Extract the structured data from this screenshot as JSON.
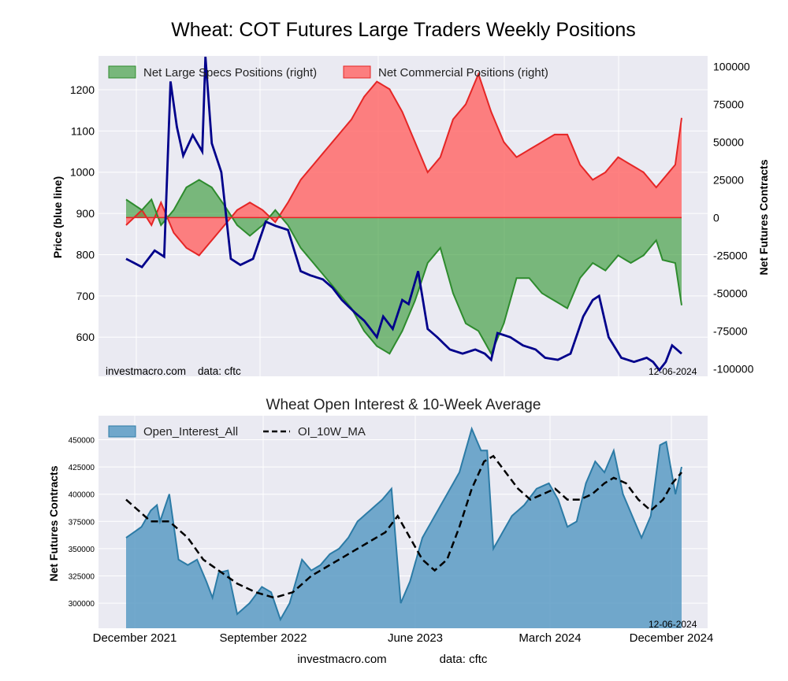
{
  "colors": {
    "panel_bg": "#eaeaf2",
    "grid": "#ffffff",
    "specs_fill": "#3b9b3b",
    "specs_line": "#2e8b2e",
    "comm_fill": "#ff6b6b",
    "comm_line": "#e52626",
    "price": "#00008b",
    "oi_fill": "#5b9bc4",
    "oi_line": "#2c7ba6",
    "ma": "#000000"
  },
  "chart_data": [
    {
      "type": "area",
      "title": "Wheat: COT Futures Large Traders Weekly Positions",
      "ylabel_left": "Price (blue line)",
      "ylabel_right": "Net Futures Contracts",
      "ylim_left": [
        505,
        1282
      ],
      "ylim_right": [
        -105000,
        107000
      ],
      "yticks_left": [
        "600",
        "700",
        "800",
        "900",
        "1000",
        "1100",
        "1200"
      ],
      "yticks_right": [
        "100000",
        "75000",
        "50000",
        "25000",
        "0",
        "-25000",
        "-50000",
        "-75000",
        "-100000"
      ],
      "legend_position": "top-left",
      "footer_left": "investmacro.com    data: cftc",
      "footer_right": "12-06-2024",
      "series": [
        {
          "name": "Net Large Specs Positions (right)",
          "anchors": [
            [
              0,
              12000
            ],
            [
              5,
              5000
            ],
            [
              8,
              12000
            ],
            [
              11,
              -5000
            ],
            [
              15,
              5000
            ],
            [
              19,
              20000
            ],
            [
              23,
              25000
            ],
            [
              27,
              20000
            ],
            [
              31,
              8000
            ],
            [
              35,
              -5000
            ],
            [
              39,
              -12000
            ],
            [
              43,
              -5000
            ],
            [
              47,
              5000
            ],
            [
              51,
              -5000
            ],
            [
              55,
              -20000
            ],
            [
              59,
              -30000
            ],
            [
              63,
              -40000
            ],
            [
              67,
              -50000
            ],
            [
              71,
              -60000
            ],
            [
              75,
              -75000
            ],
            [
              79,
              -85000
            ],
            [
              83,
              -90000
            ],
            [
              87,
              -75000
            ],
            [
              91,
              -55000
            ],
            [
              95,
              -30000
            ],
            [
              99,
              -20000
            ],
            [
              103,
              -50000
            ],
            [
              107,
              -70000
            ],
            [
              111,
              -75000
            ],
            [
              115,
              -90000
            ],
            [
              119,
              -70000
            ],
            [
              123,
              -40000
            ],
            [
              127,
              -40000
            ],
            [
              131,
              -50000
            ],
            [
              135,
              -55000
            ],
            [
              139,
              -60000
            ],
            [
              143,
              -40000
            ],
            [
              147,
              -30000
            ],
            [
              151,
              -35000
            ],
            [
              155,
              -25000
            ],
            [
              159,
              -30000
            ],
            [
              163,
              -25000
            ],
            [
              167,
              -15000
            ],
            [
              169,
              -28000
            ],
            [
              173,
              -30000
            ],
            [
              175,
              -58000
            ]
          ]
        },
        {
          "name": "Net Commercial Positions (right)",
          "anchors": [
            [
              0,
              -5000
            ],
            [
              5,
              5000
            ],
            [
              8,
              -5000
            ],
            [
              11,
              10000
            ],
            [
              15,
              -10000
            ],
            [
              19,
              -20000
            ],
            [
              23,
              -25000
            ],
            [
              27,
              -15000
            ],
            [
              31,
              -5000
            ],
            [
              35,
              5000
            ],
            [
              39,
              10000
            ],
            [
              43,
              5000
            ],
            [
              47,
              -3000
            ],
            [
              51,
              10000
            ],
            [
              55,
              25000
            ],
            [
              59,
              35000
            ],
            [
              63,
              45000
            ],
            [
              67,
              55000
            ],
            [
              71,
              65000
            ],
            [
              75,
              80000
            ],
            [
              79,
              90000
            ],
            [
              83,
              85000
            ],
            [
              87,
              70000
            ],
            [
              91,
              50000
            ],
            [
              95,
              30000
            ],
            [
              99,
              40000
            ],
            [
              103,
              65000
            ],
            [
              107,
              75000
            ],
            [
              111,
              95000
            ],
            [
              115,
              70000
            ],
            [
              119,
              50000
            ],
            [
              123,
              40000
            ],
            [
              127,
              45000
            ],
            [
              131,
              50000
            ],
            [
              135,
              55000
            ],
            [
              139,
              55000
            ],
            [
              143,
              35000
            ],
            [
              147,
              25000
            ],
            [
              151,
              30000
            ],
            [
              155,
              40000
            ],
            [
              159,
              35000
            ],
            [
              163,
              30000
            ],
            [
              167,
              20000
            ],
            [
              169,
              25000
            ],
            [
              173,
              35000
            ],
            [
              175,
              66000
            ]
          ]
        },
        {
          "name": "Price",
          "anchors": [
            [
              0,
              790
            ],
            [
              5,
              770
            ],
            [
              9,
              810
            ],
            [
              12,
              795
            ],
            [
              14,
              1220
            ],
            [
              16,
              1110
            ],
            [
              18,
              1040
            ],
            [
              21,
              1090
            ],
            [
              24,
              1050
            ],
            [
              25,
              1280
            ],
            [
              27,
              1070
            ],
            [
              30,
              1000
            ],
            [
              33,
              790
            ],
            [
              36,
              775
            ],
            [
              40,
              790
            ],
            [
              44,
              880
            ],
            [
              47,
              870
            ],
            [
              51,
              860
            ],
            [
              55,
              760
            ],
            [
              58,
              750
            ],
            [
              62,
              740
            ],
            [
              65,
              720
            ],
            [
              68,
              690
            ],
            [
              72,
              660
            ],
            [
              75,
              640
            ],
            [
              79,
              600
            ],
            [
              81,
              650
            ],
            [
              84,
              620
            ],
            [
              87,
              690
            ],
            [
              89,
              680
            ],
            [
              92,
              760
            ],
            [
              95,
              620
            ],
            [
              98,
              600
            ],
            [
              102,
              570
            ],
            [
              106,
              560
            ],
            [
              110,
              570
            ],
            [
              113,
              560
            ],
            [
              115,
              545
            ],
            [
              117,
              610
            ],
            [
              121,
              600
            ],
            [
              125,
              580
            ],
            [
              129,
              570
            ],
            [
              132,
              550
            ],
            [
              136,
              545
            ],
            [
              140,
              560
            ],
            [
              144,
              650
            ],
            [
              147,
              690
            ],
            [
              149,
              700
            ],
            [
              152,
              600
            ],
            [
              156,
              550
            ],
            [
              160,
              540
            ],
            [
              164,
              550
            ],
            [
              166,
              540
            ],
            [
              168,
              520
            ],
            [
              170,
              540
            ],
            [
              172,
              580
            ],
            [
              175,
              560
            ]
          ]
        }
      ]
    },
    {
      "type": "area",
      "title": "Wheat Open Interest & 10-Week Average",
      "ylabel": "Net Futures Contracts",
      "ylim": [
        277000,
        472000
      ],
      "yticks": [
        "300000",
        "325000",
        "350000",
        "375000",
        "400000",
        "425000",
        "450000"
      ],
      "xticks": [
        "December 2021",
        "September 2022",
        "June 2023",
        "March 2024",
        "December 2024"
      ],
      "legend_position": "top-left",
      "date_label": "12-06-2024",
      "series": [
        {
          "name": "Open_Interest_All",
          "anchors": [
            [
              0,
              360000
            ],
            [
              5,
              370000
            ],
            [
              8,
              385000
            ],
            [
              10,
              390000
            ],
            [
              11,
              375000
            ],
            [
              14,
              400000
            ],
            [
              17,
              340000
            ],
            [
              20,
              335000
            ],
            [
              23,
              340000
            ],
            [
              26,
              320000
            ],
            [
              28,
              305000
            ],
            [
              30,
              328000
            ],
            [
              33,
              330000
            ],
            [
              36,
              290000
            ],
            [
              40,
              300000
            ],
            [
              44,
              315000
            ],
            [
              47,
              310000
            ],
            [
              50,
              285000
            ],
            [
              53,
              300000
            ],
            [
              57,
              340000
            ],
            [
              60,
              330000
            ],
            [
              63,
              335000
            ],
            [
              66,
              345000
            ],
            [
              69,
              350000
            ],
            [
              72,
              360000
            ],
            [
              75,
              375000
            ],
            [
              79,
              385000
            ],
            [
              83,
              395000
            ],
            [
              86,
              405000
            ],
            [
              89,
              300000
            ],
            [
              92,
              320000
            ],
            [
              96,
              360000
            ],
            [
              100,
              380000
            ],
            [
              104,
              400000
            ],
            [
              108,
              420000
            ],
            [
              112,
              460000
            ],
            [
              115,
              440000
            ],
            [
              117,
              440000
            ],
            [
              119,
              350000
            ],
            [
              122,
              365000
            ],
            [
              125,
              380000
            ],
            [
              129,
              390000
            ],
            [
              133,
              405000
            ],
            [
              137,
              410000
            ],
            [
              140,
              395000
            ],
            [
              143,
              370000
            ],
            [
              146,
              375000
            ],
            [
              149,
              410000
            ],
            [
              152,
              430000
            ],
            [
              155,
              420000
            ],
            [
              158,
              440000
            ],
            [
              161,
              400000
            ],
            [
              164,
              380000
            ],
            [
              167,
              360000
            ],
            [
              170,
              380000
            ],
            [
              173,
              445000
            ],
            [
              175,
              448000
            ],
            [
              178,
              400000
            ],
            [
              180,
              425000
            ]
          ]
        },
        {
          "name": "OI_10W_MA",
          "anchors": [
            [
              0,
              395000
            ],
            [
              8,
              375000
            ],
            [
              14,
              375000
            ],
            [
              20,
              360000
            ],
            [
              25,
              340000
            ],
            [
              30,
              330000
            ],
            [
              36,
              318000
            ],
            [
              42,
              310000
            ],
            [
              48,
              305000
            ],
            [
              54,
              310000
            ],
            [
              60,
              325000
            ],
            [
              66,
              335000
            ],
            [
              72,
              345000
            ],
            [
              78,
              355000
            ],
            [
              84,
              365000
            ],
            [
              88,
              380000
            ],
            [
              92,
              360000
            ],
            [
              96,
              340000
            ],
            [
              100,
              330000
            ],
            [
              104,
              340000
            ],
            [
              108,
              370000
            ],
            [
              112,
              405000
            ],
            [
              116,
              430000
            ],
            [
              119,
              435000
            ],
            [
              123,
              420000
            ],
            [
              127,
              405000
            ],
            [
              131,
              395000
            ],
            [
              135,
              400000
            ],
            [
              139,
              405000
            ],
            [
              143,
              395000
            ],
            [
              147,
              395000
            ],
            [
              151,
              400000
            ],
            [
              155,
              410000
            ],
            [
              158,
              415000
            ],
            [
              162,
              410000
            ],
            [
              166,
              395000
            ],
            [
              170,
              385000
            ],
            [
              174,
              395000
            ],
            [
              177,
              410000
            ],
            [
              180,
              420000
            ]
          ]
        }
      ]
    }
  ],
  "bottom_credits": {
    "site": "investmacro.com",
    "data": "data: cftc"
  }
}
